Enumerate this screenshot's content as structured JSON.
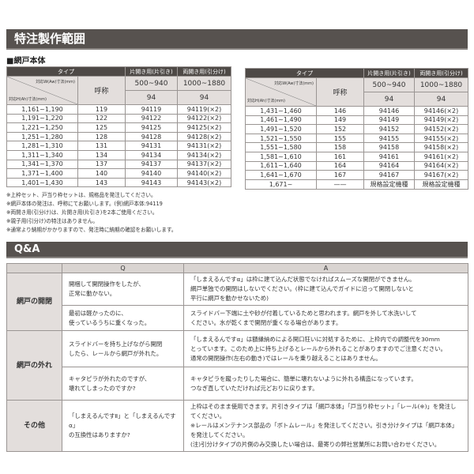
{
  "title": "特注製作範囲",
  "section": "■網戸本体",
  "size_table": {
    "type_label": "タイプ",
    "single_label": "片開き用(片引き)",
    "double_label": "両開き用(引分け)",
    "width_label": "対応W(Aw)寸法(mm)",
    "height_label": "対応H(Ah)寸法(mm)",
    "name_label": "呼称",
    "single_width": "500~940",
    "double_width": "1000~1880",
    "single_code": "94",
    "double_code": "94",
    "left_rows": [
      [
        "1,161~1,190",
        "119",
        "94119",
        "94119(×2)"
      ],
      [
        "1,191~1,220",
        "122",
        "94122",
        "94122(×2)"
      ],
      [
        "1,221~1,250",
        "125",
        "94125",
        "94125(×2)"
      ],
      [
        "1,251~1,280",
        "128",
        "94128",
        "94128(×2)"
      ],
      [
        "1,281~1,310",
        "131",
        "94131",
        "94131(×2)"
      ],
      [
        "1,311~1,340",
        "134",
        "94134",
        "94134(×2)"
      ],
      [
        "1,341~1,370",
        "137",
        "94137",
        "94137(×2)"
      ],
      [
        "1,371~1,400",
        "140",
        "94140",
        "94140(×2)"
      ],
      [
        "1,401~1,430",
        "143",
        "94143",
        "94143(×2)"
      ]
    ],
    "right_rows": [
      [
        "1,431~1,460",
        "146",
        "94146",
        "94146(×2)"
      ],
      [
        "1,461~1,490",
        "149",
        "94149",
        "94149(×2)"
      ],
      [
        "1,491~1,520",
        "152",
        "94152",
        "94152(×2)"
      ],
      [
        "1,521~1,550",
        "155",
        "94155",
        "94155(×2)"
      ],
      [
        "1,551~1,580",
        "158",
        "94158",
        "94158(×2)"
      ],
      [
        "1,581~1,610",
        "161",
        "94161",
        "94161(×2)"
      ],
      [
        "1,611~1,640",
        "164",
        "94164",
        "94164(×2)"
      ],
      [
        "1,641~1,670",
        "167",
        "94167",
        "94167(×2)"
      ],
      [
        "1,671~",
        "——",
        "規格設定機種",
        "規格設定機種"
      ]
    ]
  },
  "notes": [
    "※上枠セット、戸当り枠セットは、規格品を発注してください。",
    "※網戸本体の発注は、呼称にてお願いします。(例)網戸本体:94119",
    "※両開き用(引分け)は、片開き用(片引き)を2本ご使用ください。",
    "※親子用(引分け)の特注はありません。",
    "※通常より納期がかかりますので、発注時に納期の確認をお願いします。"
  ],
  "qa": {
    "title": "Q&A",
    "q_header": "Q",
    "a_header": "A",
    "groups": [
      {
        "category": "網戸の開閉",
        "items": [
          {
            "q": "開梱して開閉操作をしたが、\n正常に動かない。",
            "a": "「しまえるんですα」は枠に建て込んだ状態でなければスムーズな開閉ができません。\n網戸単独での開閉はしないでください。(枠に建て込んでガイドに沿って開閉しないと\n平行に網戸を動かせないため)"
          },
          {
            "q": "最初は軽かったのに、\n使っているうちに重くなった。",
            "a": "スライドバー下端に土や砂が付着しているためと思われます。網戸を外して水洗いして\nください。水が乾くまで開閉が重くなる場合があります。"
          }
        ]
      },
      {
        "category": "網戸の外れ",
        "items": [
          {
            "q": "スライドバーを持ち上げながら開閉\nしたら、レールから網戸が外れた。",
            "a": "「しまえるんですα」は額縁納めによる開口狂いに対処するために、上枠内での調整代を30mm\nとっています。このため上に持ち上げるとレールから外れることがありますのでご注意ください。\n通常の開閉操作(左右の動き)ではレールを乗り越えることはありません。"
          },
          {
            "q": "キャタピラが外れたのですが、\n壊れてしまったのですか?",
            "a": "キャタピラを蹴ったりした場合に、簡単に壊れないように外れる構造になっています。\nつなぎ直していただければ元どおりに戻ります。"
          }
        ]
      },
      {
        "category": "その他",
        "items": [
          {
            "q": "「しまえるんですⅡ」と「しまえるんですα」\nの互換性はありますか?",
            "a": "上枠はそのまま使用できます。片引きタイプは「網戸本体」「戸当り枠セット」「レール(※)」を発注してください。\n※レールはメンテナンス部品の「ボトムレール」を発注してください。引き分けタイプは「網戸本体」を発注してください。\n(注)引分けタイプの片側のみ交換したい場合は、最寄りの弊社営業所にお問い合わせください。"
          }
        ]
      }
    ]
  },
  "colors": {
    "header_dark": "#57524f",
    "header_light": "#e3dedc",
    "border": "#9a9593"
  }
}
